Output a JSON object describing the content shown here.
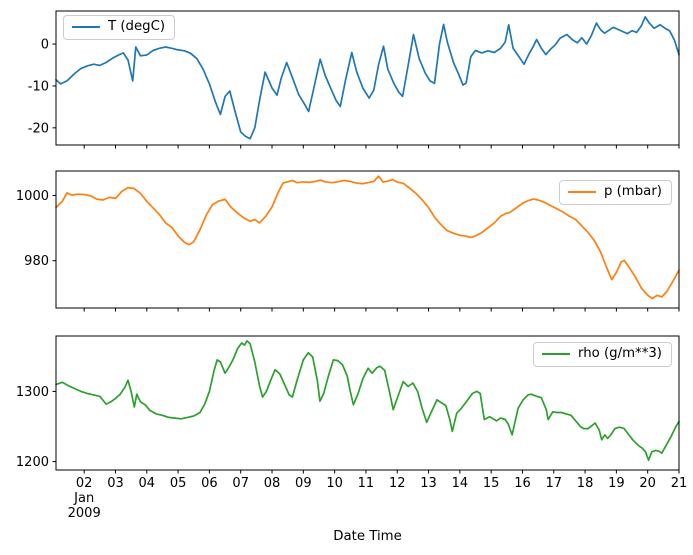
{
  "figure": {
    "background": "#ffffff",
    "frame_color": "#000000"
  },
  "x_axis": {
    "label": "Date Time",
    "xlim": [
      1.1,
      21.0
    ],
    "ticks": [
      2,
      3,
      4,
      5,
      6,
      7,
      8,
      9,
      10,
      11,
      12,
      13,
      14,
      15,
      16,
      17,
      18,
      19,
      20,
      21
    ],
    "tick_labels": [
      "02",
      "03",
      "04",
      "05",
      "06",
      "07",
      "08",
      "09",
      "10",
      "11",
      "12",
      "13",
      "14",
      "15",
      "16",
      "17",
      "18",
      "19",
      "20",
      "21"
    ],
    "first_tick_extra": [
      "Jan",
      "2009"
    ]
  },
  "chart_data": [
    {
      "type": "line",
      "name": "T",
      "legend_label": "T (degC)",
      "legend_position": "top-left",
      "color": "#1f77b4",
      "ylim": [
        -24.1,
        7.9
      ],
      "yticks": [
        0,
        -10,
        -20
      ],
      "grid": false,
      "x": [
        1.1,
        1.25,
        1.45,
        1.7,
        1.9,
        2.1,
        2.3,
        2.5,
        2.7,
        2.9,
        3.1,
        3.25,
        3.4,
        3.55,
        3.65,
        3.8,
        4.0,
        4.2,
        4.4,
        4.6,
        4.8,
        5.0,
        5.2,
        5.4,
        5.6,
        5.8,
        6.0,
        6.2,
        6.35,
        6.5,
        6.65,
        6.8,
        7.0,
        7.15,
        7.3,
        7.45,
        7.6,
        7.78,
        8.0,
        8.16,
        8.3,
        8.47,
        8.65,
        8.85,
        9.05,
        9.17,
        9.35,
        9.54,
        9.7,
        9.9,
        10.05,
        10.18,
        10.35,
        10.55,
        10.7,
        10.9,
        11.1,
        11.25,
        11.4,
        11.56,
        11.7,
        11.9,
        12.05,
        12.17,
        12.35,
        12.52,
        12.7,
        12.9,
        13.05,
        13.19,
        13.35,
        13.48,
        13.6,
        13.8,
        13.95,
        14.1,
        14.2,
        14.35,
        14.5,
        14.7,
        14.9,
        15.1,
        15.3,
        15.45,
        15.56,
        15.7,
        15.85,
        16.05,
        16.2,
        16.35,
        16.45,
        16.6,
        16.75,
        16.9,
        17.05,
        17.2,
        17.42,
        17.6,
        17.75,
        17.9,
        18.05,
        18.2,
        18.36,
        18.5,
        18.62,
        18.76,
        18.9,
        19.05,
        19.2,
        19.35,
        19.5,
        19.65,
        19.8,
        19.92,
        20.05,
        20.2,
        20.4,
        20.55,
        20.7,
        20.85,
        21.0
      ],
      "y": [
        -8.5,
        -9.5,
        -8.8,
        -7.0,
        -5.8,
        -5.2,
        -4.8,
        -5.1,
        -4.4,
        -3.4,
        -2.6,
        -2.1,
        -3.8,
        -8.8,
        -0.7,
        -2.8,
        -2.6,
        -1.5,
        -1.0,
        -0.7,
        -1.0,
        -1.4,
        -1.6,
        -2.2,
        -3.5,
        -6.0,
        -9.5,
        -14.0,
        -16.8,
        -12.5,
        -11.2,
        -15.5,
        -21.0,
        -22.0,
        -22.6,
        -20.0,
        -13.5,
        -6.7,
        -10.5,
        -12.2,
        -8.0,
        -4.4,
        -8.0,
        -12.0,
        -14.5,
        -16.1,
        -10.0,
        -3.6,
        -7.5,
        -11.0,
        -13.5,
        -14.9,
        -8.5,
        -2.0,
        -6.5,
        -10.5,
        -12.9,
        -11.0,
        -5.0,
        -0.5,
        -6.0,
        -9.5,
        -11.5,
        -12.5,
        -5.0,
        2.3,
        -3.5,
        -7.0,
        -8.8,
        -9.4,
        0.0,
        4.7,
        0.5,
        -4.5,
        -7.0,
        -9.8,
        -9.3,
        -3.0,
        -1.5,
        -2.1,
        -1.6,
        -2.0,
        -1.0,
        0.5,
        4.6,
        -1.0,
        -2.6,
        -4.8,
        -2.5,
        -0.5,
        1.1,
        -1.0,
        -2.5,
        -1.2,
        -0.2,
        1.4,
        2.3,
        1.0,
        0.3,
        1.5,
        0.0,
        2.0,
        5.0,
        3.4,
        2.6,
        3.3,
        4.0,
        3.5,
        3.0,
        2.5,
        3.2,
        2.8,
        4.4,
        6.5,
        5.0,
        3.8,
        4.6,
        3.8,
        3.2,
        1.0,
        -2.5
      ]
    },
    {
      "type": "line",
      "name": "p",
      "legend_label": "p (mbar)",
      "legend_position": "top-right",
      "color": "#ff7f0e",
      "ylim": [
        965.5,
        1007.5
      ],
      "yticks": [
        1000,
        980
      ],
      "grid": false,
      "x": [
        1.1,
        1.3,
        1.45,
        1.6,
        1.8,
        2.0,
        2.2,
        2.4,
        2.6,
        2.8,
        3.0,
        3.2,
        3.4,
        3.6,
        3.8,
        4.0,
        4.2,
        4.4,
        4.6,
        4.8,
        5.0,
        5.2,
        5.35,
        5.5,
        5.7,
        5.9,
        6.1,
        6.3,
        6.5,
        6.7,
        6.9,
        7.1,
        7.3,
        7.45,
        7.6,
        7.8,
        8.0,
        8.2,
        8.35,
        8.5,
        8.65,
        8.8,
        9.0,
        9.2,
        9.4,
        9.55,
        9.7,
        9.9,
        10.1,
        10.3,
        10.5,
        10.7,
        10.9,
        11.1,
        11.25,
        11.4,
        11.55,
        11.7,
        11.85,
        12.0,
        12.2,
        12.4,
        12.6,
        12.8,
        13.0,
        13.2,
        13.4,
        13.6,
        13.8,
        14.0,
        14.2,
        14.35,
        14.5,
        14.7,
        14.9,
        15.1,
        15.3,
        15.45,
        15.6,
        15.8,
        16.0,
        16.2,
        16.35,
        16.5,
        16.7,
        16.9,
        17.1,
        17.3,
        17.5,
        17.7,
        17.9,
        18.1,
        18.3,
        18.5,
        18.7,
        18.85,
        19.0,
        19.15,
        19.25,
        19.4,
        19.6,
        19.8,
        20.0,
        20.15,
        20.3,
        20.45,
        20.6,
        20.8,
        21.0
      ],
      "y": [
        996.3,
        998.2,
        1000.8,
        1000.1,
        1000.4,
        1000.3,
        999.9,
        998.9,
        998.6,
        999.4,
        999.1,
        1001.2,
        1002.4,
        1002.1,
        1000.6,
        998.2,
        996.2,
        994.2,
        991.6,
        990.2,
        987.6,
        985.6,
        984.9,
        985.8,
        989.5,
        994.0,
        997.2,
        998.3,
        998.8,
        996.3,
        994.6,
        993.1,
        992.1,
        992.6,
        991.6,
        993.6,
        996.5,
        1001.0,
        1003.8,
        1004.2,
        1004.6,
        1003.9,
        1004.2,
        1004.0,
        1004.3,
        1004.7,
        1004.2,
        1003.9,
        1004.2,
        1004.6,
        1004.3,
        1003.8,
        1003.6,
        1004.0,
        1004.3,
        1005.9,
        1004.1,
        1004.4,
        1004.9,
        1004.1,
        1003.7,
        1002.2,
        1000.6,
        998.6,
        996.3,
        993.2,
        991.0,
        989.2,
        988.4,
        987.8,
        987.5,
        987.1,
        987.6,
        988.6,
        990.1,
        991.6,
        993.6,
        994.4,
        994.8,
        996.2,
        997.6,
        998.5,
        998.9,
        998.6,
        997.9,
        996.9,
        995.9,
        994.9,
        993.6,
        992.6,
        990.6,
        988.6,
        986.1,
        982.6,
        977.6,
        974.2,
        976.4,
        979.6,
        980.1,
        978.1,
        975.1,
        971.6,
        969.4,
        968.4,
        969.4,
        968.9,
        970.4,
        973.6,
        977.1
      ]
    },
    {
      "type": "line",
      "name": "rho",
      "legend_label": "rho (g/m**3)",
      "legend_position": "top-right",
      "color": "#2ca02c",
      "ylim": [
        1188,
        1379
      ],
      "yticks": [
        1300,
        1200
      ],
      "grid": false,
      "x": [
        1.1,
        1.3,
        1.5,
        1.7,
        1.9,
        2.1,
        2.3,
        2.5,
        2.7,
        2.85,
        3.0,
        3.15,
        3.3,
        3.4,
        3.5,
        3.6,
        3.68,
        3.8,
        3.95,
        4.1,
        4.3,
        4.5,
        4.7,
        4.9,
        5.1,
        5.3,
        5.5,
        5.7,
        5.85,
        6.0,
        6.15,
        6.25,
        6.35,
        6.5,
        6.6,
        6.75,
        6.9,
        7.03,
        7.12,
        7.2,
        7.3,
        7.45,
        7.6,
        7.7,
        7.82,
        7.95,
        8.1,
        8.25,
        8.4,
        8.55,
        8.65,
        8.8,
        9.0,
        9.16,
        9.3,
        9.45,
        9.53,
        9.65,
        9.8,
        9.96,
        10.1,
        10.25,
        10.4,
        10.5,
        10.6,
        10.75,
        10.9,
        11.07,
        11.2,
        11.35,
        11.45,
        11.6,
        11.75,
        11.87,
        12.0,
        12.19,
        12.35,
        12.5,
        12.65,
        12.8,
        12.94,
        13.1,
        13.27,
        13.4,
        13.55,
        13.68,
        13.76,
        13.9,
        14.05,
        14.22,
        14.4,
        14.54,
        14.65,
        14.78,
        14.95,
        15.17,
        15.3,
        15.45,
        15.55,
        15.67,
        15.86,
        16.02,
        16.18,
        16.28,
        16.45,
        16.6,
        16.76,
        16.82,
        16.97,
        17.1,
        17.25,
        17.4,
        17.55,
        17.7,
        17.85,
        17.95,
        18.1,
        18.24,
        18.32,
        18.45,
        18.53,
        18.63,
        18.72,
        18.82,
        18.95,
        19.1,
        19.25,
        19.4,
        19.52,
        19.63,
        19.73,
        19.83,
        19.93,
        20.03,
        20.13,
        20.25,
        20.35,
        20.45,
        20.6,
        20.75,
        20.9,
        21.0
      ],
      "y": [
        1310,
        1313,
        1308,
        1304,
        1300,
        1297,
        1295,
        1293,
        1282,
        1285,
        1290,
        1296,
        1306,
        1316,
        1300,
        1278,
        1296,
        1285,
        1281,
        1273,
        1268,
        1266,
        1263,
        1262,
        1261,
        1263,
        1265,
        1270,
        1282,
        1300,
        1330,
        1345,
        1342,
        1326,
        1333,
        1345,
        1361,
        1369,
        1366,
        1372,
        1368,
        1342,
        1308,
        1292,
        1300,
        1315,
        1331,
        1325,
        1310,
        1295,
        1292,
        1316,
        1345,
        1355,
        1349,
        1315,
        1286,
        1297,
        1322,
        1345,
        1344,
        1338,
        1322,
        1300,
        1281,
        1297,
        1318,
        1333,
        1326,
        1334,
        1336,
        1330,
        1300,
        1274,
        1290,
        1314,
        1307,
        1312,
        1300,
        1275,
        1256,
        1272,
        1288,
        1284,
        1280,
        1260,
        1243,
        1269,
        1276,
        1286,
        1297,
        1300,
        1297,
        1260,
        1264,
        1258,
        1262,
        1260,
        1253,
        1238,
        1276,
        1288,
        1295,
        1296,
        1293,
        1291,
        1274,
        1260,
        1271,
        1270,
        1270,
        1268,
        1266,
        1258,
        1250,
        1247,
        1247,
        1252,
        1255,
        1245,
        1231,
        1238,
        1233,
        1238,
        1247,
        1249,
        1247,
        1238,
        1231,
        1226,
        1222,
        1219,
        1214,
        1202,
        1214,
        1216,
        1215,
        1212,
        1224,
        1236,
        1250,
        1257
      ]
    }
  ]
}
